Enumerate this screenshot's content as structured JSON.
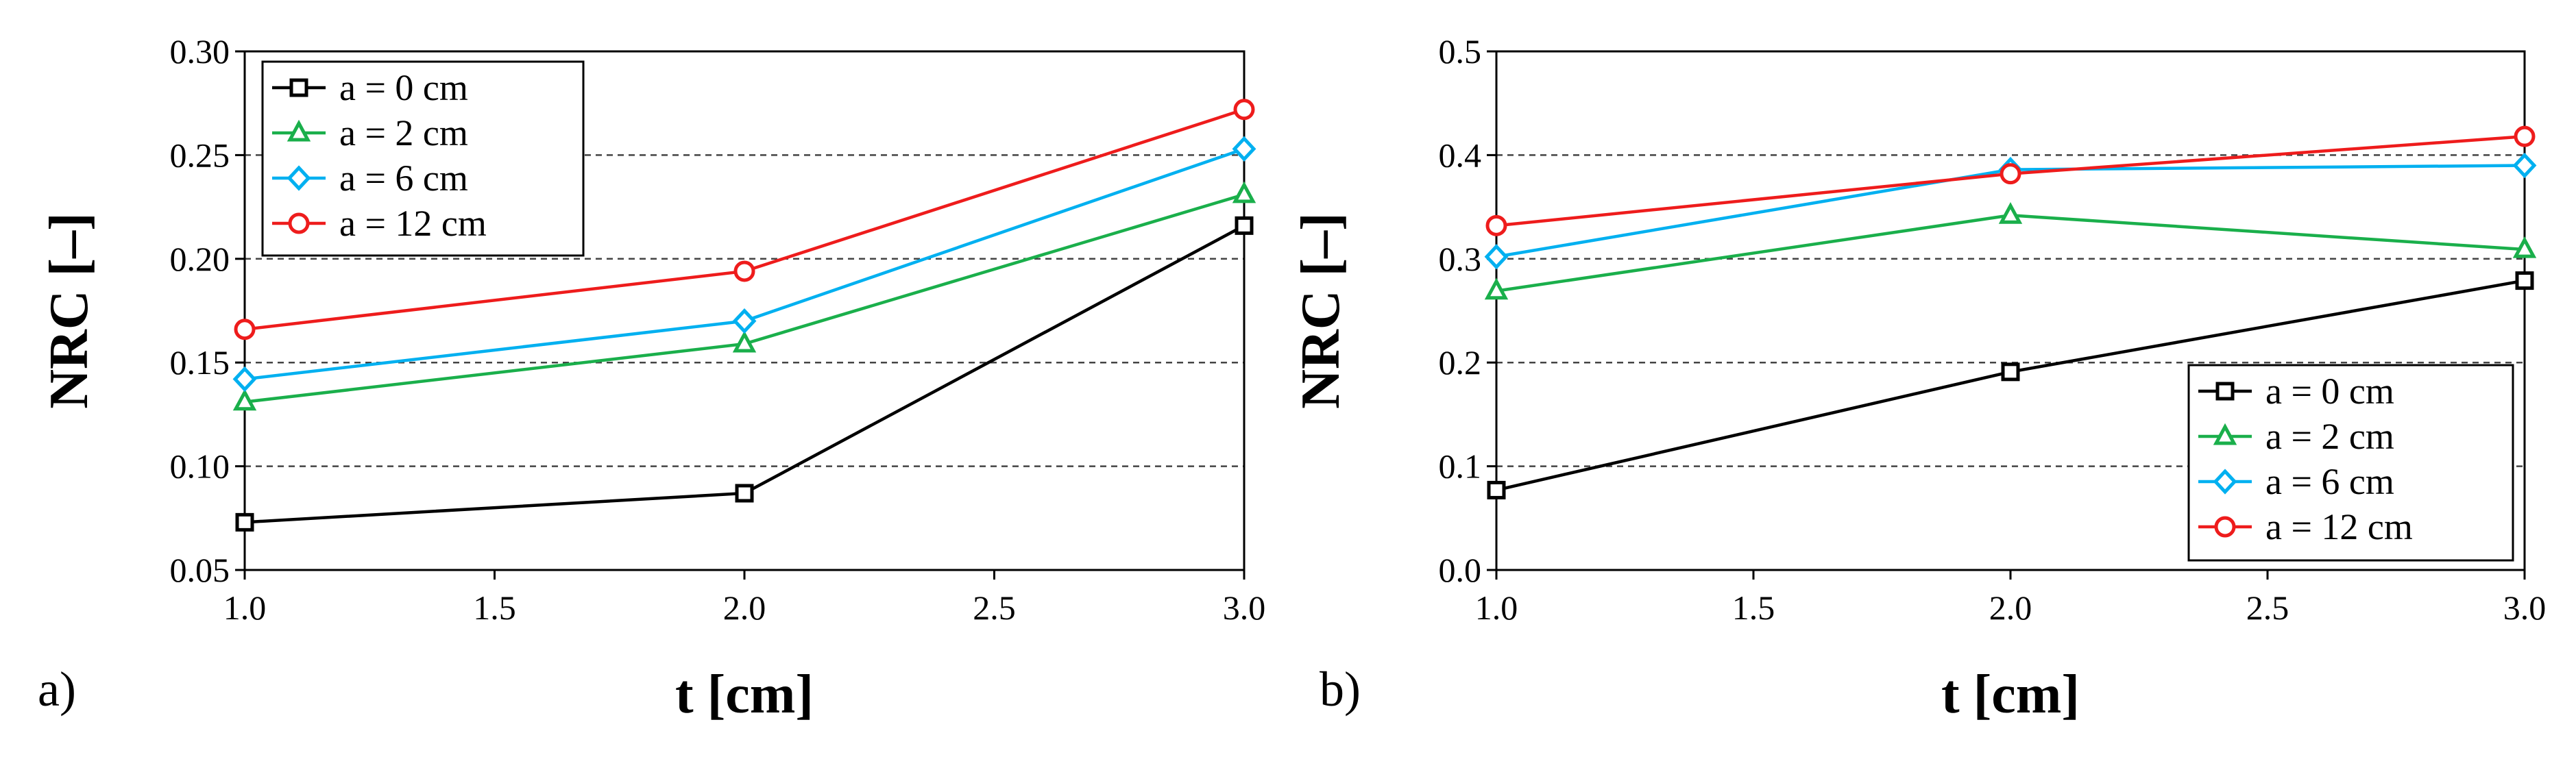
{
  "chart_data": [
    {
      "type": "line",
      "panel_label": "a)",
      "xlabel": "t [cm]",
      "ylabel": "NRC [–]",
      "x": [
        1.0,
        2.0,
        3.0
      ],
      "xlim": [
        1.0,
        3.0
      ],
      "xticks": [
        1.0,
        1.5,
        2.0,
        2.5,
        3.0
      ],
      "xtick_labels": [
        "1.0",
        "1.5",
        "2.0",
        "2.5",
        "3.0"
      ],
      "ylim": [
        0.05,
        0.3
      ],
      "yticks": [
        0.05,
        0.1,
        0.15,
        0.2,
        0.25,
        0.3
      ],
      "ytick_labels": [
        "0.05",
        "0.10",
        "0.15",
        "0.20",
        "0.25",
        "0.30"
      ],
      "grid": "horizontal dashed",
      "legend_position": "top-left",
      "series": [
        {
          "name": "a = 0 cm",
          "color": "#000000",
          "marker": "square",
          "values": [
            0.073,
            0.087,
            0.216
          ]
        },
        {
          "name": "a = 2 cm",
          "color": "#1aaf4b",
          "marker": "triangle",
          "values": [
            0.131,
            0.159,
            0.231
          ]
        },
        {
          "name": "a = 6 cm",
          "color": "#00b0f0",
          "marker": "diamond",
          "values": [
            0.142,
            0.17,
            0.253
          ]
        },
        {
          "name": "a = 12 cm",
          "color": "#ee1c1c",
          "marker": "circle",
          "values": [
            0.166,
            0.194,
            0.272
          ]
        }
      ]
    },
    {
      "type": "line",
      "panel_label": "b)",
      "xlabel": "t [cm]",
      "ylabel": "NRC [–]",
      "x": [
        1.0,
        2.0,
        3.0
      ],
      "xlim": [
        1.0,
        3.0
      ],
      "xticks": [
        1.0,
        1.5,
        2.0,
        2.5,
        3.0
      ],
      "xtick_labels": [
        "1.0",
        "1.5",
        "2.0",
        "2.5",
        "3.0"
      ],
      "ylim": [
        0.0,
        0.5
      ],
      "yticks": [
        0.0,
        0.1,
        0.2,
        0.3,
        0.4,
        0.5
      ],
      "ytick_labels": [
        "0.0",
        "0.1",
        "0.2",
        "0.3",
        "0.4",
        "0.5"
      ],
      "grid": "horizontal dashed",
      "legend_position": "bottom-right",
      "series": [
        {
          "name": "a = 0 cm",
          "color": "#000000",
          "marker": "square",
          "values": [
            0.077,
            0.191,
            0.279
          ]
        },
        {
          "name": "a = 2 cm",
          "color": "#1aaf4b",
          "marker": "triangle",
          "values": [
            0.269,
            0.342,
            0.309
          ]
        },
        {
          "name": "a = 6 cm",
          "color": "#00b0f0",
          "marker": "diamond",
          "values": [
            0.302,
            0.386,
            0.39
          ]
        },
        {
          "name": "a = 12 cm",
          "color": "#ee1c1c",
          "marker": "circle",
          "values": [
            0.332,
            0.382,
            0.418
          ]
        }
      ]
    }
  ]
}
